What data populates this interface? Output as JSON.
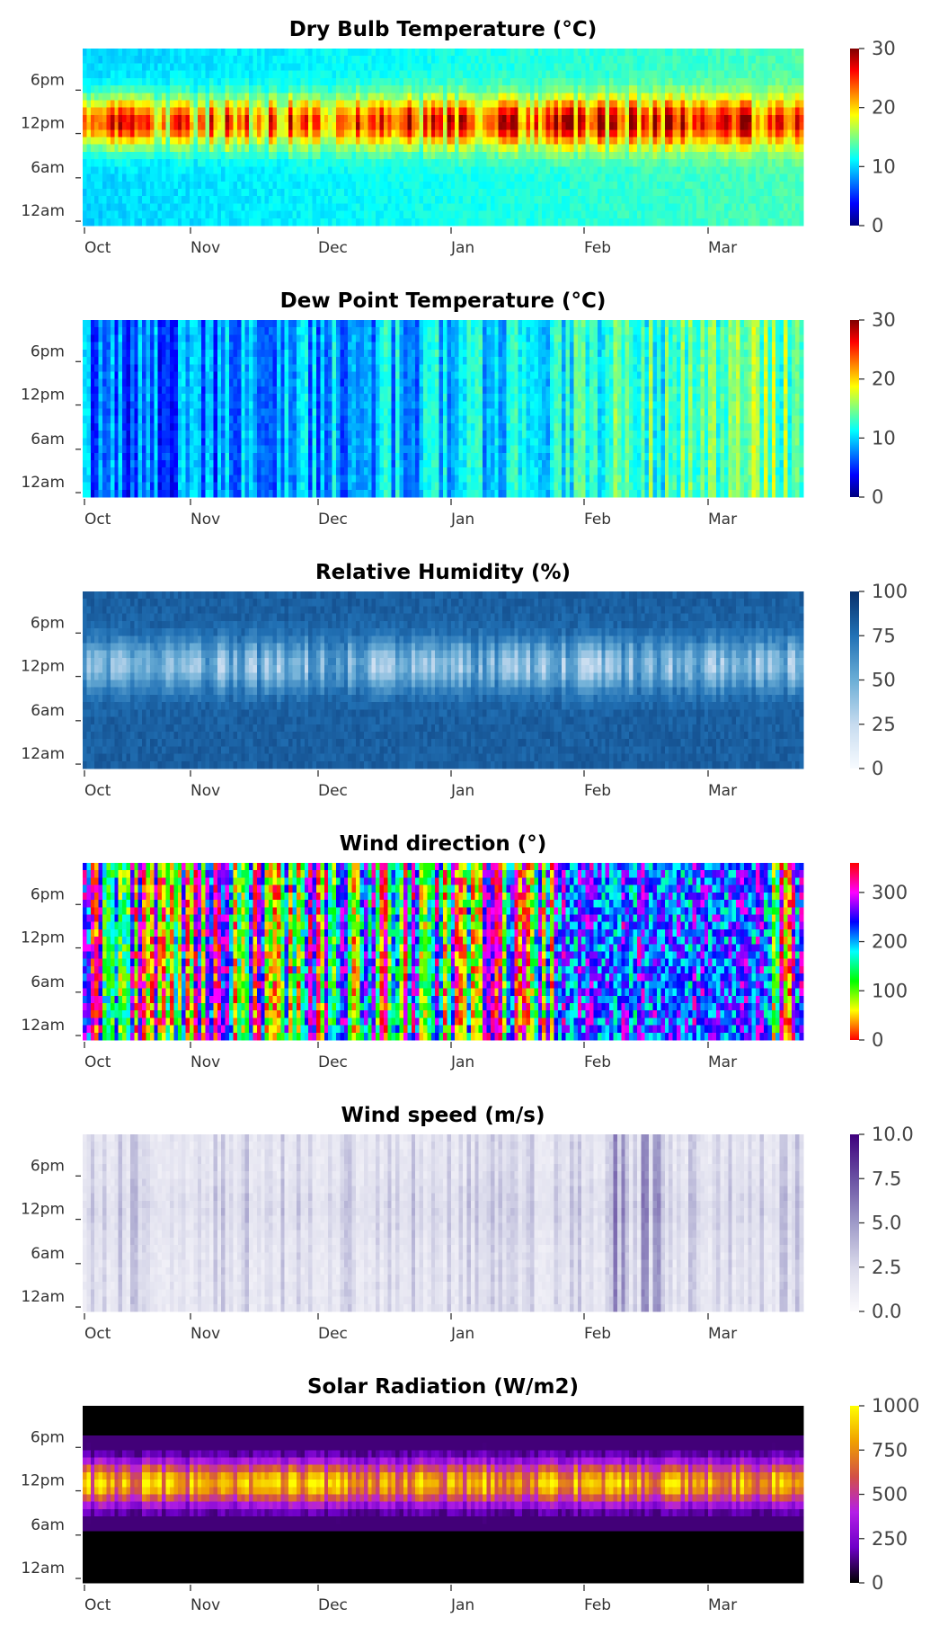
{
  "chart_data": [
    {
      "type": "heatmap",
      "title": "Dry Bulb Temperature (°C)",
      "x_tick_labels": [
        "Oct",
        "Nov",
        "Dec",
        "Jan",
        "Feb",
        "Mar"
      ],
      "y_tick_labels": [
        "6pm",
        "12pm",
        "6am",
        "12am"
      ],
      "colormap": "jet",
      "colorbar_range": [
        0,
        30
      ],
      "colorbar_ticks": [
        "30",
        "20",
        "10",
        "0"
      ],
      "colorbar_colors": [
        "#00007f",
        "#0000ff",
        "#0080ff",
        "#00ffff",
        "#80ff80",
        "#ffff00",
        "#ff8000",
        "#ff0000",
        "#7f0000"
      ]
    },
    {
      "type": "heatmap",
      "title": "Dew Point Temperature (°C)",
      "x_tick_labels": [
        "Oct",
        "Nov",
        "Dec",
        "Jan",
        "Feb",
        "Mar"
      ],
      "y_tick_labels": [
        "6pm",
        "12pm",
        "6am",
        "12am"
      ],
      "colormap": "jet",
      "colorbar_range": [
        0,
        30
      ],
      "colorbar_ticks": [
        "30",
        "20",
        "10",
        "0"
      ],
      "colorbar_colors": [
        "#00007f",
        "#0000ff",
        "#0080ff",
        "#00ffff",
        "#80ff80",
        "#ffff00",
        "#ff8000",
        "#ff0000",
        "#7f0000"
      ]
    },
    {
      "type": "heatmap",
      "title": "Relative Humidity (%)",
      "x_tick_labels": [
        "Oct",
        "Nov",
        "Dec",
        "Jan",
        "Feb",
        "Mar"
      ],
      "y_tick_labels": [
        "6pm",
        "12pm",
        "6am",
        "12am"
      ],
      "colormap": "Blues",
      "colorbar_range": [
        0,
        100
      ],
      "colorbar_ticks": [
        "100",
        "75",
        "50",
        "25",
        "0"
      ],
      "colorbar_colors": [
        "#f7fbff",
        "#c6dbef",
        "#6baed6",
        "#2171b5",
        "#08306b"
      ]
    },
    {
      "type": "heatmap",
      "title": "Wind direction (°)",
      "x_tick_labels": [
        "Oct",
        "Nov",
        "Dec",
        "Jan",
        "Feb",
        "Mar"
      ],
      "y_tick_labels": [
        "6pm",
        "12pm",
        "6am",
        "12am"
      ],
      "colormap": "hsv",
      "colorbar_range": [
        0,
        360
      ],
      "colorbar_ticks": [
        "300",
        "200",
        "100",
        "0"
      ],
      "colorbar_colors": [
        "#ff0000",
        "#ffff00",
        "#00ff00",
        "#00ffff",
        "#0000ff",
        "#ff00ff",
        "#ff0000"
      ]
    },
    {
      "type": "heatmap",
      "title": "Wind speed (m/s)",
      "x_tick_labels": [
        "Oct",
        "Nov",
        "Dec",
        "Jan",
        "Feb",
        "Mar"
      ],
      "y_tick_labels": [
        "6pm",
        "12pm",
        "6am",
        "12am"
      ],
      "colormap": "Purples",
      "colorbar_range": [
        0,
        10
      ],
      "colorbar_ticks": [
        "10.0",
        "7.5",
        "5.0",
        "2.5",
        "0.0"
      ],
      "colorbar_colors": [
        "#fcfbfd",
        "#dadaeb",
        "#9e9ac8",
        "#6a51a3",
        "#3f007d"
      ]
    },
    {
      "type": "heatmap",
      "title": "Solar Radiation (W/m2)",
      "x_tick_labels": [
        "Oct",
        "Nov",
        "Dec",
        "Jan",
        "Feb",
        "Mar"
      ],
      "y_tick_labels": [
        "6pm",
        "12pm",
        "6am",
        "12am"
      ],
      "colormap": "gnuplot",
      "colorbar_range": [
        0,
        1000
      ],
      "colorbar_ticks": [
        "1000",
        "750",
        "500",
        "250",
        "0"
      ],
      "colorbar_colors": [
        "#000000",
        "#6e00c8",
        "#b41ee6",
        "#d25046",
        "#f0a000",
        "#ffff00"
      ]
    }
  ]
}
